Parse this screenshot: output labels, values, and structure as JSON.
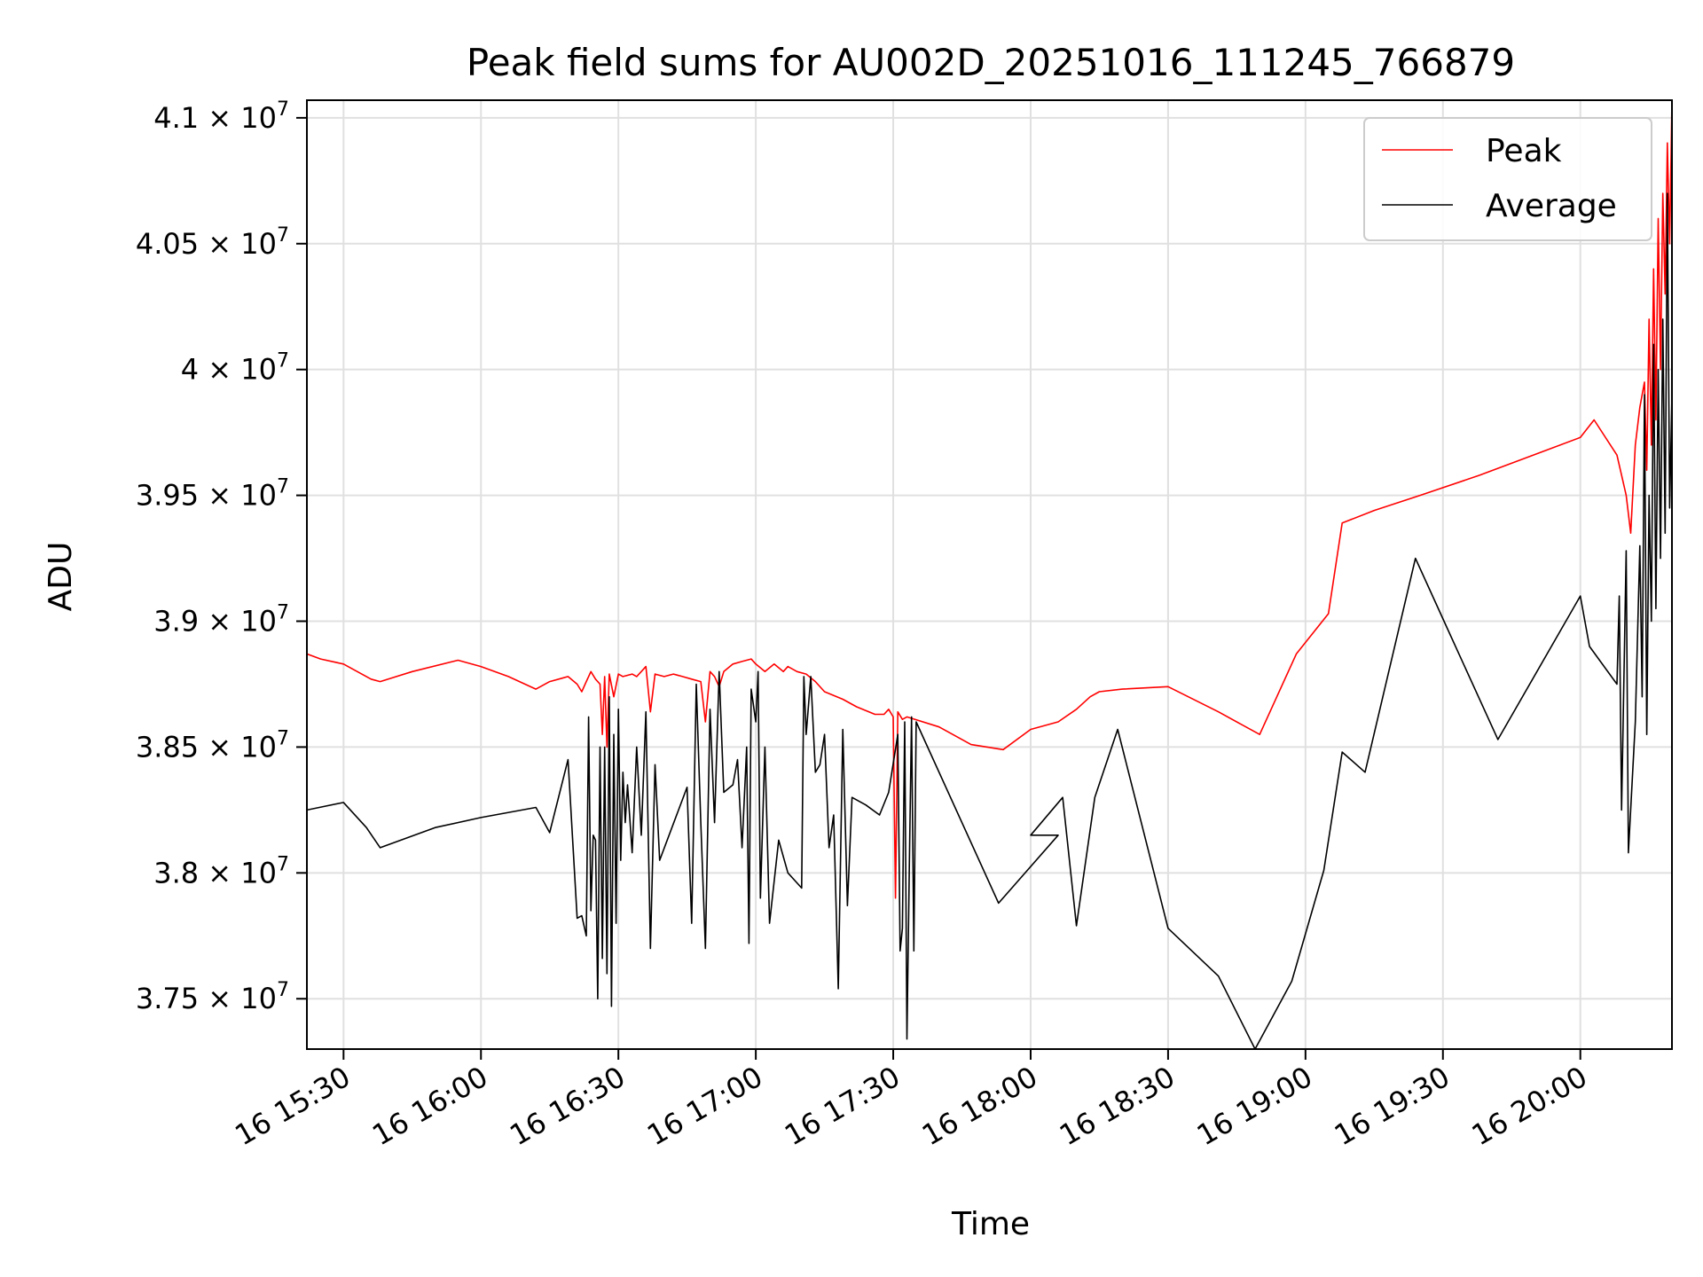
{
  "chart_data": {
    "type": "line",
    "title": "Peak field sums for AU002D_20251016_111245_766879",
    "xlabel": "Time",
    "ylabel": "ADU",
    "x_axis_kind": "time",
    "xlim": [
      "2025-10-16 15:22",
      "2025-10-16 20:20"
    ],
    "ylim": [
      37300000,
      41070000
    ],
    "grid": true,
    "legend_position": "top-right",
    "x_ticks": [
      {
        "time": "15:30",
        "label": "16 15:30"
      },
      {
        "time": "16:00",
        "label": "16 16:00"
      },
      {
        "time": "16:30",
        "label": "16 16:30"
      },
      {
        "time": "17:00",
        "label": "16 17:00"
      },
      {
        "time": "17:30",
        "label": "16 17:30"
      },
      {
        "time": "18:00",
        "label": "16 18:00"
      },
      {
        "time": "18:30",
        "label": "16 18:30"
      },
      {
        "time": "19:00",
        "label": "16 19:00"
      },
      {
        "time": "19:30",
        "label": "16 19:30"
      },
      {
        "time": "20:00",
        "label": "16 20:00"
      }
    ],
    "y_ticks": [
      {
        "value": 37500000,
        "mantissa": "3.75"
      },
      {
        "value": 38000000,
        "mantissa": "3.8"
      },
      {
        "value": 38500000,
        "mantissa": "3.85"
      },
      {
        "value": 39000000,
        "mantissa": "3.9"
      },
      {
        "value": 39500000,
        "mantissa": "3.95"
      },
      {
        "value": 40000000,
        "mantissa": "4"
      },
      {
        "value": 40500000,
        "mantissa": "4.05"
      },
      {
        "value": 41000000,
        "mantissa": "4.1"
      }
    ],
    "y_tick_suffix": "× 10",
    "y_tick_exponent": "7",
    "series": [
      {
        "name": "Peak",
        "color": "#ff0000",
        "points": [
          [
            "15:22",
            38870000
          ],
          [
            "15:25",
            38850000
          ],
          [
            "15:30",
            38830000
          ],
          [
            "15:33",
            38800000
          ],
          [
            "15:36",
            38770000
          ],
          [
            "15:38",
            38760000
          ],
          [
            "15:45",
            38800000
          ],
          [
            "15:55",
            38845000
          ],
          [
            "16:00",
            38820000
          ],
          [
            "16:06",
            38780000
          ],
          [
            "16:12",
            38730000
          ],
          [
            "16:15",
            38760000
          ],
          [
            "16:19",
            38780000
          ],
          [
            "16:21",
            38750000
          ],
          [
            "16:22",
            38720000
          ],
          [
            "16:23",
            38760000
          ],
          [
            "16:24",
            38800000
          ],
          [
            "16:25",
            38770000
          ],
          [
            "16:26",
            38750000
          ],
          [
            "16:26.5",
            38550000
          ],
          [
            "16:27",
            38780000
          ],
          [
            "16:27.5",
            38500000
          ],
          [
            "16:28",
            38790000
          ],
          [
            "16:29",
            38700000
          ],
          [
            "16:30",
            38790000
          ],
          [
            "16:31",
            38780000
          ],
          [
            "16:33",
            38790000
          ],
          [
            "16:34",
            38780000
          ],
          [
            "16:35",
            38800000
          ],
          [
            "16:36",
            38820000
          ],
          [
            "16:37",
            38640000
          ],
          [
            "16:38",
            38790000
          ],
          [
            "16:40",
            38780000
          ],
          [
            "16:42",
            38790000
          ],
          [
            "16:44",
            38780000
          ],
          [
            "16:46",
            38770000
          ],
          [
            "16:48",
            38760000
          ],
          [
            "16:49",
            38600000
          ],
          [
            "16:50",
            38800000
          ],
          [
            "16:51",
            38780000
          ],
          [
            "16:52",
            38740000
          ],
          [
            "16:53",
            38800000
          ],
          [
            "16:55",
            38830000
          ],
          [
            "16:57",
            38840000
          ],
          [
            "16:59",
            38850000
          ],
          [
            "17:00",
            38830000
          ],
          [
            "17:02",
            38800000
          ],
          [
            "17:04",
            38830000
          ],
          [
            "17:06",
            38800000
          ],
          [
            "17:07",
            38820000
          ],
          [
            "17:09",
            38800000
          ],
          [
            "17:11",
            38790000
          ],
          [
            "17:13",
            38760000
          ],
          [
            "17:15",
            38720000
          ],
          [
            "17:19",
            38690000
          ],
          [
            "17:22",
            38660000
          ],
          [
            "17:26",
            38630000
          ],
          [
            "17:28",
            38630000
          ],
          [
            "17:29",
            38650000
          ],
          [
            "17:30",
            38620000
          ],
          [
            "17:30.5",
            37900000
          ],
          [
            "17:31",
            38640000
          ],
          [
            "17:32",
            38610000
          ],
          [
            "17:33",
            38620000
          ],
          [
            "17:40",
            38580000
          ],
          [
            "17:47",
            38510000
          ],
          [
            "17:54",
            38490000
          ],
          [
            "18:00",
            38570000
          ],
          [
            "18:06",
            38600000
          ],
          [
            "18:10",
            38650000
          ],
          [
            "18:13",
            38700000
          ],
          [
            "18:15",
            38720000
          ],
          [
            "18:20",
            38730000
          ],
          [
            "18:30",
            38740000
          ],
          [
            "18:41",
            38640000
          ],
          [
            "18:50",
            38550000
          ],
          [
            "18:58",
            38870000
          ],
          [
            "19:05",
            39030000
          ],
          [
            "19:08",
            39390000
          ],
          [
            "19:15",
            39440000
          ],
          [
            "19:25",
            39500000
          ],
          [
            "19:38",
            39580000
          ],
          [
            "20:00",
            39730000
          ],
          [
            "20:03",
            39800000
          ],
          [
            "20:08",
            39660000
          ],
          [
            "20:10",
            39500000
          ],
          [
            "20:11",
            39350000
          ],
          [
            "20:12",
            39700000
          ],
          [
            "20:13",
            39850000
          ],
          [
            "20:14",
            39950000
          ],
          [
            "20:14.5",
            39600000
          ],
          [
            "20:15",
            40200000
          ],
          [
            "20:15.5",
            39700000
          ],
          [
            "20:16",
            40400000
          ],
          [
            "20:16.5",
            39800000
          ],
          [
            "20:17",
            40600000
          ],
          [
            "20:17.5",
            40000000
          ],
          [
            "20:18",
            40700000
          ],
          [
            "20:18.5",
            40300000
          ],
          [
            "20:19",
            40900000
          ],
          [
            "20:19.5",
            40500000
          ],
          [
            "20:20",
            41070000
          ]
        ]
      },
      {
        "name": "Average",
        "color": "#000000",
        "points": [
          [
            "15:22",
            38250000
          ],
          [
            "15:30",
            38280000
          ],
          [
            "15:35",
            38180000
          ],
          [
            "15:38",
            38100000
          ],
          [
            "15:50",
            38180000
          ],
          [
            "16:00",
            38220000
          ],
          [
            "16:12",
            38260000
          ],
          [
            "16:15",
            38160000
          ],
          [
            "16:19",
            38450000
          ],
          [
            "16:21",
            37820000
          ],
          [
            "16:22",
            37830000
          ],
          [
            "16:23",
            37750000
          ],
          [
            "16:23.5",
            38620000
          ],
          [
            "16:24",
            37850000
          ],
          [
            "16:24.5",
            38150000
          ],
          [
            "16:25",
            38130000
          ],
          [
            "16:25.5",
            37500000
          ],
          [
            "16:26",
            38500000
          ],
          [
            "16:26.5",
            37660000
          ],
          [
            "16:27",
            38500000
          ],
          [
            "16:27.5",
            37600000
          ],
          [
            "16:28",
            38700000
          ],
          [
            "16:28.5",
            37470000
          ],
          [
            "16:29",
            38550000
          ],
          [
            "16:29.5",
            37800000
          ],
          [
            "16:30",
            38650000
          ],
          [
            "16:30.5",
            38050000
          ],
          [
            "16:31",
            38400000
          ],
          [
            "16:31.5",
            38200000
          ],
          [
            "16:32",
            38350000
          ],
          [
            "16:33",
            38080000
          ],
          [
            "16:34",
            38500000
          ],
          [
            "16:35",
            38150000
          ],
          [
            "16:36",
            38640000
          ],
          [
            "16:37",
            37700000
          ],
          [
            "16:38",
            38430000
          ],
          [
            "16:39",
            38050000
          ],
          [
            "16:45",
            38340000
          ],
          [
            "16:46",
            37800000
          ],
          [
            "16:47",
            38750000
          ],
          [
            "16:48",
            38200000
          ],
          [
            "16:49",
            37700000
          ],
          [
            "16:50",
            38650000
          ],
          [
            "16:51",
            38200000
          ],
          [
            "16:52",
            38800000
          ],
          [
            "16:53",
            38320000
          ],
          [
            "16:55",
            38350000
          ],
          [
            "16:56",
            38450000
          ],
          [
            "16:57",
            38100000
          ],
          [
            "16:58",
            38500000
          ],
          [
            "16:58.5",
            37720000
          ],
          [
            "16:59",
            38730000
          ],
          [
            "17:00",
            38600000
          ],
          [
            "17:00.5",
            38800000
          ],
          [
            "17:01",
            37900000
          ],
          [
            "17:02",
            38500000
          ],
          [
            "17:03",
            37800000
          ],
          [
            "17:05",
            38130000
          ],
          [
            "17:07",
            38000000
          ],
          [
            "17:10",
            37940000
          ],
          [
            "17:10.5",
            38780000
          ],
          [
            "17:11",
            38550000
          ],
          [
            "17:12",
            38780000
          ],
          [
            "17:13",
            38400000
          ],
          [
            "17:14",
            38430000
          ],
          [
            "17:15",
            38550000
          ],
          [
            "17:16",
            38100000
          ],
          [
            "17:17",
            38230000
          ],
          [
            "17:18",
            37540000
          ],
          [
            "17:19",
            38570000
          ],
          [
            "17:20",
            37870000
          ],
          [
            "17:21",
            38300000
          ],
          [
            "17:24",
            38270000
          ],
          [
            "17:27",
            38230000
          ],
          [
            "17:29",
            38320000
          ],
          [
            "17:31",
            38550000
          ],
          [
            "17:31.5",
            37690000
          ],
          [
            "17:32",
            37780000
          ],
          [
            "17:32.5",
            38600000
          ],
          [
            "17:33",
            37340000
          ],
          [
            "17:33.5",
            38000000
          ],
          [
            "17:34",
            38620000
          ],
          [
            "17:34.5",
            37690000
          ],
          [
            "17:35",
            38600000
          ],
          [
            "17:53",
            37880000
          ],
          [
            "17:66",
            38150000
          ],
          [
            "18:00",
            38150000
          ],
          [
            "18:07",
            38300000
          ],
          [
            "18:10",
            37790000
          ],
          [
            "18:14",
            38300000
          ],
          [
            "18:19",
            38570000
          ],
          [
            "18:30",
            37780000
          ],
          [
            "18:41",
            37590000
          ],
          [
            "18:49",
            37300000
          ],
          [
            "18:57",
            37570000
          ],
          [
            "19:04",
            38010000
          ],
          [
            "19:08",
            38480000
          ],
          [
            "19:13",
            38400000
          ],
          [
            "19:24",
            39250000
          ],
          [
            "19:31",
            38970000
          ],
          [
            "19:42",
            38530000
          ],
          [
            "20:00",
            39100000
          ],
          [
            "20:02",
            38900000
          ],
          [
            "20:08",
            38750000
          ],
          [
            "20:08.5",
            39100000
          ],
          [
            "20:09",
            38250000
          ],
          [
            "20:10",
            39280000
          ],
          [
            "20:10.5",
            38080000
          ],
          [
            "20:12",
            38600000
          ],
          [
            "20:13",
            39300000
          ],
          [
            "20:13.5",
            38700000
          ],
          [
            "20:14",
            39900000
          ],
          [
            "20:14.5",
            38550000
          ],
          [
            "20:15",
            39500000
          ],
          [
            "20:15.5",
            39000000
          ],
          [
            "20:16",
            40100000
          ],
          [
            "20:16.5",
            39050000
          ],
          [
            "20:17",
            40000000
          ],
          [
            "20:17.5",
            39250000
          ],
          [
            "20:18",
            40200000
          ],
          [
            "20:18.5",
            39350000
          ],
          [
            "20:19",
            40700000
          ],
          [
            "20:19.5",
            39450000
          ],
          [
            "20:20",
            39900000
          ]
        ]
      }
    ]
  }
}
